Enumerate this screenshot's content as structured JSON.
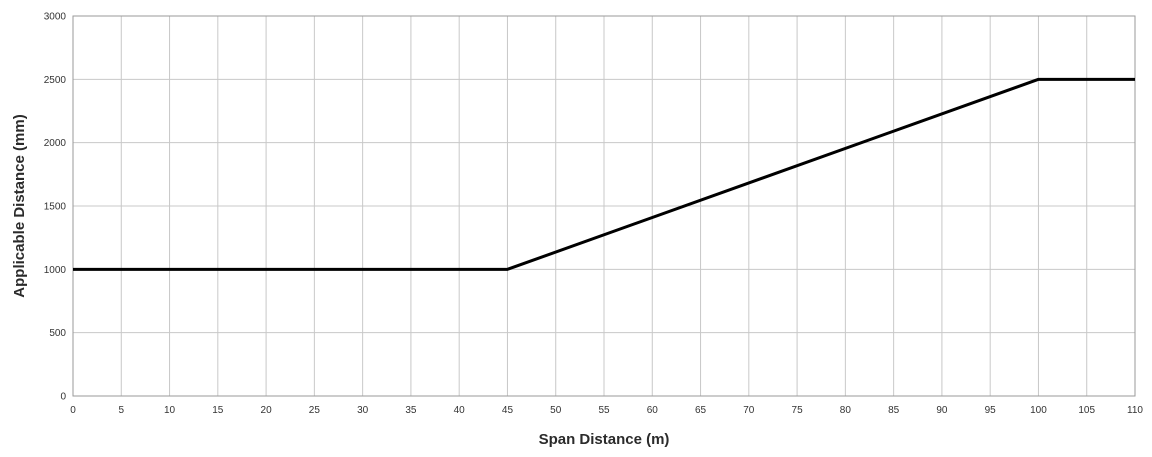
{
  "chart_data": {
    "type": "line",
    "title": "",
    "xlabel": "Span Distance (m)",
    "ylabel": "Applicable Distance (mm)",
    "xlim": [
      0,
      110
    ],
    "ylim": [
      0,
      3000
    ],
    "x_ticks": [
      0,
      5,
      10,
      15,
      20,
      25,
      30,
      35,
      40,
      45,
      50,
      55,
      60,
      65,
      70,
      75,
      80,
      85,
      90,
      95,
      100,
      105,
      110
    ],
    "y_ticks": [
      0,
      500,
      1000,
      1500,
      2000,
      2500,
      3000
    ],
    "grid": true,
    "legend": "none",
    "series": [
      {
        "color": "#000000",
        "points": [
          {
            "x": 0,
            "y": 1000
          },
          {
            "x": 45,
            "y": 1000
          },
          {
            "x": 100,
            "y": 2500
          },
          {
            "x": 110,
            "y": 2500
          }
        ]
      }
    ]
  }
}
